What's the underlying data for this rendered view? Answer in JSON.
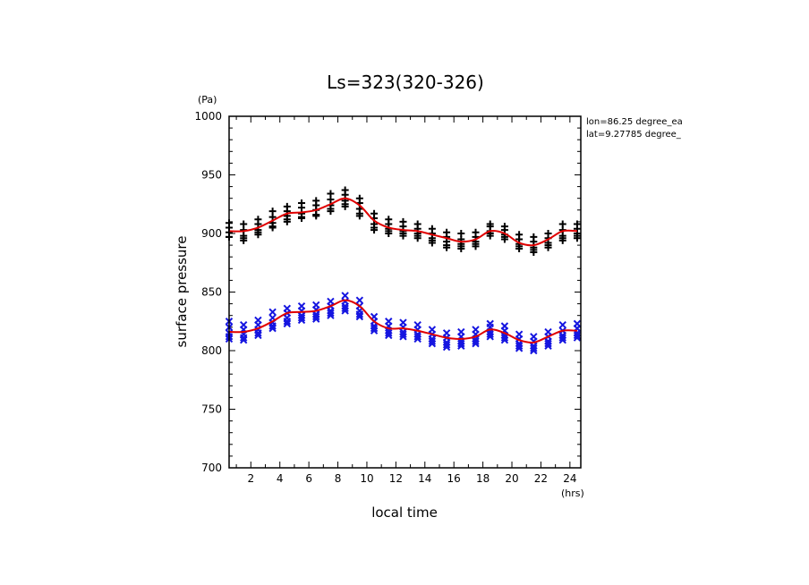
{
  "chart_data": {
    "type": "scatter",
    "title": "Ls=323(320-326)",
    "xlabel": "local time",
    "xunit": "(hrs)",
    "ylabel": "surface pressure",
    "yunit": "(Pa)",
    "annotations": [
      "lon=86.25 degree_ea",
      "lat=9.27785 degree_"
    ],
    "xlim": [
      0.5,
      24.75
    ],
    "ylim": [
      700,
      1000
    ],
    "xticks": [
      2,
      4,
      6,
      8,
      10,
      12,
      14,
      16,
      18,
      20,
      22,
      24
    ],
    "yticks": [
      700,
      750,
      800,
      850,
      900,
      950,
      1000
    ],
    "grid": false,
    "colors": {
      "upper_points": "#000000",
      "lower_points": "#1515e0",
      "mean_lines": "#e00000"
    },
    "series": [
      {
        "marker": "plus",
        "x": [
          0.5,
          0.5,
          0.5,
          0.5,
          0.5,
          1.5,
          1.5,
          1.5,
          1.5,
          1.5,
          2.5,
          2.5,
          2.5,
          2.5,
          2.5,
          3.5,
          3.5,
          3.5,
          3.5,
          3.5,
          4.5,
          4.5,
          4.5,
          4.5,
          4.5,
          5.5,
          5.5,
          5.5,
          5.5,
          5.5,
          6.5,
          6.5,
          6.5,
          6.5,
          6.5,
          7.5,
          7.5,
          7.5,
          7.5,
          7.5,
          8.5,
          8.5,
          8.5,
          8.5,
          8.5,
          9.5,
          9.5,
          9.5,
          9.5,
          9.5,
          10.5,
          10.5,
          10.5,
          10.5,
          10.5,
          11.5,
          11.5,
          11.5,
          11.5,
          11.5,
          12.5,
          12.5,
          12.5,
          12.5,
          12.5,
          13.5,
          13.5,
          13.5,
          13.5,
          13.5,
          14.5,
          14.5,
          14.5,
          14.5,
          14.5,
          15.5,
          15.5,
          15.5,
          15.5,
          15.5,
          16.5,
          16.5,
          16.5,
          16.5,
          16.5,
          17.5,
          17.5,
          17.5,
          17.5,
          17.5,
          18.5,
          18.5,
          18.5,
          18.5,
          18.5,
          19.5,
          19.5,
          19.5,
          19.5,
          19.5,
          20.5,
          20.5,
          20.5,
          20.5,
          20.5,
          21.5,
          21.5,
          21.5,
          21.5,
          21.5,
          22.5,
          22.5,
          22.5,
          22.5,
          22.5,
          23.5,
          23.5,
          23.5,
          23.5,
          23.5,
          24.5,
          24.5,
          24.5,
          24.5,
          24.5
        ],
        "y": [
          897,
          901,
          905,
          909,
          897,
          894,
          898,
          903,
          908,
          896,
          899,
          903,
          908,
          912,
          901,
          905,
          909,
          914,
          919,
          906,
          910,
          915,
          919,
          923,
          912,
          913,
          917,
          922,
          926,
          914,
          915,
          920,
          924,
          928,
          916,
          919,
          924,
          929,
          934,
          921,
          923,
          928,
          933,
          937,
          925,
          915,
          921,
          926,
          930,
          917,
          903,
          908,
          913,
          917,
          905,
          900,
          904,
          908,
          912,
          902,
          898,
          902,
          906,
          910,
          900,
          896,
          900,
          904,
          908,
          898,
          892,
          896,
          900,
          904,
          894,
          888,
          893,
          897,
          901,
          890,
          887,
          891,
          895,
          900,
          889,
          889,
          893,
          897,
          901,
          891,
          898,
          902,
          906,
          908,
          900,
          895,
          899,
          903,
          906,
          897,
          887,
          891,
          895,
          899,
          889,
          884,
          888,
          893,
          897,
          886,
          888,
          892,
          896,
          900,
          890,
          894,
          898,
          903,
          908,
          896,
          896,
          900,
          904,
          908,
          898
        ]
      },
      {
        "marker": "x",
        "x": [
          0.5,
          0.5,
          0.5,
          0.5,
          0.5,
          1.5,
          1.5,
          1.5,
          1.5,
          1.5,
          2.5,
          2.5,
          2.5,
          2.5,
          2.5,
          3.5,
          3.5,
          3.5,
          3.5,
          3.5,
          4.5,
          4.5,
          4.5,
          4.5,
          4.5,
          5.5,
          5.5,
          5.5,
          5.5,
          5.5,
          6.5,
          6.5,
          6.5,
          6.5,
          6.5,
          7.5,
          7.5,
          7.5,
          7.5,
          7.5,
          8.5,
          8.5,
          8.5,
          8.5,
          8.5,
          9.5,
          9.5,
          9.5,
          9.5,
          9.5,
          10.5,
          10.5,
          10.5,
          10.5,
          10.5,
          11.5,
          11.5,
          11.5,
          11.5,
          11.5,
          12.5,
          12.5,
          12.5,
          12.5,
          12.5,
          13.5,
          13.5,
          13.5,
          13.5,
          13.5,
          14.5,
          14.5,
          14.5,
          14.5,
          14.5,
          15.5,
          15.5,
          15.5,
          15.5,
          15.5,
          16.5,
          16.5,
          16.5,
          16.5,
          16.5,
          17.5,
          17.5,
          17.5,
          17.5,
          17.5,
          18.5,
          18.5,
          18.5,
          18.5,
          18.5,
          19.5,
          19.5,
          19.5,
          19.5,
          19.5,
          20.5,
          20.5,
          20.5,
          20.5,
          20.5,
          21.5,
          21.5,
          21.5,
          21.5,
          21.5,
          22.5,
          22.5,
          22.5,
          22.5,
          22.5,
          23.5,
          23.5,
          23.5,
          23.5,
          23.5,
          24.5,
          24.5,
          24.5,
          24.5,
          24.5
        ],
        "y": [
          810,
          815,
          820,
          825,
          812,
          809,
          814,
          818,
          822,
          811,
          813,
          818,
          822,
          826,
          815,
          819,
          824,
          828,
          833,
          821,
          823,
          828,
          832,
          836,
          825,
          826,
          830,
          834,
          838,
          828,
          827,
          831,
          835,
          839,
          829,
          830,
          834,
          838,
          842,
          832,
          834,
          838,
          842,
          847,
          836,
          829,
          834,
          838,
          843,
          831,
          817,
          821,
          825,
          829,
          819,
          813,
          817,
          821,
          825,
          815,
          812,
          816,
          820,
          824,
          814,
          810,
          814,
          818,
          822,
          812,
          806,
          810,
          814,
          818,
          808,
          803,
          807,
          811,
          815,
          805,
          804,
          808,
          812,
          816,
          806,
          806,
          810,
          814,
          818,
          808,
          812,
          816,
          820,
          823,
          814,
          809,
          813,
          817,
          821,
          811,
          802,
          806,
          810,
          814,
          804,
          800,
          804,
          808,
          812,
          802,
          804,
          808,
          812,
          816,
          806,
          809,
          813,
          817,
          822,
          811,
          811,
          815,
          819,
          823,
          813
        ]
      },
      {
        "marker": "line",
        "x": [
          0.5,
          1.5,
          2.5,
          3.5,
          4.5,
          5.5,
          6.5,
          7.5,
          8.5,
          9.5,
          10.5,
          11.5,
          12.5,
          13.5,
          14.5,
          15.5,
          16.5,
          17.5,
          18.5,
          19.5,
          20.5,
          21.5,
          22.5,
          23.5,
          24.5
        ],
        "y": [
          902,
          902,
          905,
          911,
          917,
          918,
          920,
          925,
          930,
          924,
          911,
          905,
          903,
          902,
          899,
          896,
          893,
          895,
          902,
          900,
          892,
          890,
          895,
          902,
          902
        ]
      },
      {
        "marker": "line",
        "x": [
          0.5,
          1.5,
          2.5,
          3.5,
          4.5,
          5.5,
          6.5,
          7.5,
          8.5,
          9.5,
          10.5,
          11.5,
          12.5,
          13.5,
          14.5,
          15.5,
          16.5,
          17.5,
          18.5,
          19.5,
          20.5,
          21.5,
          22.5,
          23.5,
          24.5
        ],
        "y": [
          816,
          816,
          819,
          825,
          832,
          833,
          834,
          838,
          843,
          838,
          825,
          819,
          819,
          817,
          814,
          811,
          810,
          812,
          818,
          815,
          809,
          807,
          812,
          817,
          817
        ]
      }
    ]
  }
}
